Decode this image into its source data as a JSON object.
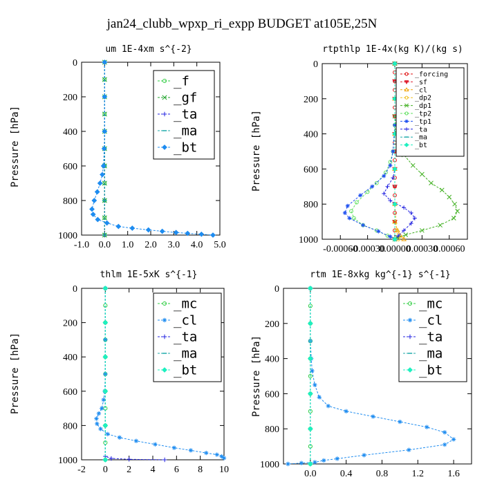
{
  "figure_title": "jan24_clubb_wpxp_ri_expp  BUDGET at105E,25N",
  "chart_data": [
    {
      "type": "line",
      "title": "um  1E-4xm s^{-2}",
      "ylabel": "Pressure [hPa]",
      "xlim": [
        -1.0,
        5.0
      ],
      "ylim": [
        1000,
        0
      ],
      "xticks": [
        -1.0,
        0.0,
        1.0,
        2.0,
        3.0,
        4.0,
        5.0
      ],
      "xtick_labels": [
        "-1.0",
        "0.0",
        "1.0",
        "2.0",
        "3.0",
        "4.0",
        "5.0"
      ],
      "yticks": [
        0,
        200,
        400,
        600,
        800,
        1000
      ],
      "ytick_labels": [
        "0",
        "200",
        "400",
        "600",
        "800",
        "1000"
      ],
      "legend": {
        "placement": "top-right",
        "size": "large"
      },
      "series": [
        {
          "name": "_f",
          "color": "#2ecc40",
          "marker": "circle",
          "x": [
            0,
            0,
            0,
            0,
            0,
            0,
            0,
            0,
            0,
            0,
            0
          ],
          "y": [
            0,
            100,
            200,
            300,
            400,
            500,
            600,
            700,
            800,
            900,
            1000
          ]
        },
        {
          "name": "_gf",
          "color": "#1ea32a",
          "marker": "cross",
          "x": [
            0,
            0,
            0,
            0,
            0,
            0,
            0,
            0,
            0,
            0,
            0
          ],
          "y": [
            0,
            100,
            200,
            300,
            400,
            500,
            600,
            700,
            800,
            900,
            1000
          ]
        },
        {
          "name": "_ta",
          "color": "#2020e0",
          "marker": "plus",
          "x": [
            0,
            0,
            0,
            0,
            0,
            0
          ],
          "y": [
            0,
            200,
            400,
            600,
            800,
            1000
          ]
        },
        {
          "name": "_ma",
          "color": "#1eaaaa",
          "marker": "dash",
          "x": [
            0,
            0,
            0,
            0,
            0,
            0
          ],
          "y": [
            0,
            200,
            400,
            600,
            800,
            1000
          ]
        },
        {
          "name": "_bt",
          "color": "#1e8cf0",
          "marker": "diamond",
          "x": [
            0,
            0,
            0,
            -0.02,
            -0.05,
            -0.1,
            -0.2,
            -0.32,
            -0.45,
            -0.55,
            -0.5,
            -0.3,
            0.1,
            0.6,
            1.2,
            1.9,
            2.5,
            3.1,
            3.6,
            4.2,
            4.7
          ],
          "y": [
            0,
            200,
            400,
            500,
            600,
            650,
            700,
            750,
            800,
            850,
            880,
            910,
            930,
            950,
            960,
            970,
            978,
            985,
            990,
            995,
            1000
          ]
        }
      ]
    },
    {
      "type": "line",
      "title": "rtpthlp  1E-4x(kg K)/(kg s)",
      "ylabel": "Pressure [hPa]",
      "xlim": [
        -0.0008,
        0.0008
      ],
      "ylim": [
        1000,
        0
      ],
      "xticks": [
        -0.0006,
        -0.0003,
        0.0,
        0.0003,
        0.0006
      ],
      "xtick_labels": [
        "-0.00060",
        "-0.00030",
        "0.00000",
        "0.00030",
        "0.00060"
      ],
      "yticks": [
        0,
        200,
        400,
        600,
        800,
        1000
      ],
      "ytick_labels": [
        "0",
        "200",
        "400",
        "600",
        "800",
        "1000"
      ],
      "legend": {
        "placement": "top-right",
        "size": "small"
      },
      "series": [
        {
          "name": "_forcing",
          "color": "#e01010",
          "marker": "circle",
          "x": [
            0,
            0,
            0,
            0,
            0,
            0,
            0,
            0,
            0,
            0,
            0,
            0,
            0,
            0,
            0,
            0,
            0,
            0,
            0,
            0,
            0
          ],
          "y": [
            0,
            50,
            100,
            150,
            200,
            250,
            300,
            350,
            400,
            450,
            500,
            550,
            600,
            650,
            700,
            750,
            800,
            850,
            900,
            950,
            1000
          ]
        },
        {
          "name": "_sf",
          "color": "#e02030",
          "marker": "triangle-down",
          "x": [
            0,
            0,
            0,
            0,
            0,
            0,
            0,
            0,
            0,
            0,
            0
          ],
          "y": [
            0,
            100,
            200,
            300,
            400,
            500,
            600,
            700,
            800,
            900,
            1000
          ]
        },
        {
          "name": "_cl",
          "color": "#f0a000",
          "marker": "triangle-up",
          "x": [
            0,
            0,
            0,
            0,
            0,
            0,
            3e-05,
            6e-05,
            0.0001
          ],
          "y": [
            0,
            200,
            400,
            600,
            800,
            900,
            950,
            980,
            1000
          ]
        },
        {
          "name": "_dp2",
          "color": "#f0c020",
          "marker": "circle",
          "x": [
            0,
            0,
            0,
            0,
            0,
            2e-05,
            4e-05
          ],
          "y": [
            0,
            200,
            400,
            600,
            800,
            950,
            1000
          ]
        },
        {
          "name": "_dp1",
          "color": "#40b020",
          "marker": "cross",
          "x": [
            0,
            0,
            2e-05,
            5e-05,
            0.0001,
            0.0002,
            0.0003,
            0.0004,
            0.00052,
            0.0006,
            0.00066,
            0.00069,
            0.00065,
            0.0005,
            0.0003,
            0.00012,
            3e-05,
            0
          ],
          "y": [
            0,
            300,
            380,
            450,
            520,
            580,
            630,
            680,
            720,
            760,
            800,
            840,
            880,
            920,
            950,
            975,
            990,
            1000
          ]
        },
        {
          "name": "_tp2",
          "color": "#60e060",
          "marker": "circle",
          "x": [
            0,
            0,
            -2e-05,
            -5e-05,
            -0.0001,
            -0.0002,
            -0.0003,
            -0.00042,
            -0.00048,
            -0.00045,
            -0.00035,
            -0.0002,
            -8e-05,
            0
          ],
          "y": [
            0,
            350,
            500,
            560,
            620,
            680,
            730,
            790,
            840,
            880,
            920,
            950,
            980,
            1000
          ]
        },
        {
          "name": "_tp1",
          "color": "#1e50f0",
          "marker": "star",
          "x": [
            0,
            0,
            -2e-05,
            -5e-05,
            -0.00012,
            -0.00025,
            -0.00038,
            -0.00052,
            -0.00055,
            -0.0005,
            -0.00035,
            -0.00018,
            -5e-05,
            0
          ],
          "y": [
            0,
            350,
            500,
            580,
            640,
            700,
            750,
            810,
            850,
            880,
            920,
            955,
            985,
            1000
          ]
        },
        {
          "name": "_ta",
          "color": "#2020e0",
          "marker": "plus",
          "x": [
            0,
            0,
            0,
            -2e-05,
            -8e-05,
            -0.00012,
            -5e-05,
            0.0001,
            0.00018,
            0.00022,
            0.00018,
            0.0001,
            4e-05,
            0
          ],
          "y": [
            0,
            400,
            600,
            650,
            700,
            740,
            780,
            820,
            850,
            880,
            910,
            950,
            980,
            1000
          ]
        },
        {
          "name": "_ma",
          "color": "#1eaaaa",
          "marker": "dash",
          "x": [
            0,
            0,
            0,
            0,
            0,
            0
          ],
          "y": [
            0,
            200,
            400,
            600,
            800,
            1000
          ]
        },
        {
          "name": "_bt",
          "color": "#1ef0c0",
          "marker": "diamond",
          "x": [
            0,
            0,
            0,
            0,
            0,
            0
          ],
          "y": [
            0,
            200,
            400,
            600,
            800,
            1000
          ]
        }
      ]
    },
    {
      "type": "line",
      "title": "thlm  1E-5xK s^{-1}",
      "ylabel": "Pressure [hPa]",
      "xlim": [
        -2,
        10
      ],
      "ylim": [
        1000,
        0
      ],
      "xticks": [
        -2,
        0,
        2,
        4,
        6,
        8,
        10
      ],
      "xtick_labels": [
        "-2",
        "0",
        "2",
        "4",
        "6",
        "8",
        "10"
      ],
      "yticks": [
        0,
        200,
        400,
        600,
        800,
        1000
      ],
      "ytick_labels": [
        "0",
        "200",
        "400",
        "600",
        "800",
        "1000"
      ],
      "legend": {
        "placement": "top-right",
        "size": "large"
      },
      "series": [
        {
          "name": "_mc",
          "color": "#2ecc40",
          "marker": "circle",
          "x": [
            0,
            0,
            0,
            0,
            0,
            0,
            0,
            0,
            0,
            0,
            0
          ],
          "y": [
            0,
            100,
            200,
            300,
            400,
            500,
            600,
            700,
            800,
            900,
            1000
          ]
        },
        {
          "name": "_cl",
          "color": "#1e8cf0",
          "marker": "star",
          "x": [
            0,
            0,
            0,
            -0.05,
            -0.15,
            -0.3,
            -0.55,
            -0.75,
            -0.7,
            -0.4,
            0.2,
            1.2,
            2.6,
            4.2,
            5.8,
            7.2,
            8.5,
            9.4,
            9.8,
            10
          ],
          "y": [
            0,
            300,
            500,
            600,
            650,
            700,
            730,
            760,
            790,
            820,
            850,
            870,
            890,
            910,
            930,
            945,
            960,
            970,
            980,
            990
          ]
        },
        {
          "name": "_ta",
          "color": "#2020e0",
          "marker": "plus",
          "x": [
            0,
            0,
            0,
            0,
            0.5,
            2.0,
            5.0
          ],
          "y": [
            0,
            400,
            800,
            980,
            992,
            997,
            1000
          ]
        },
        {
          "name": "_ma",
          "color": "#1eaaaa",
          "marker": "dash",
          "x": [
            0,
            0,
            0,
            0,
            0,
            0
          ],
          "y": [
            0,
            200,
            400,
            600,
            800,
            1000
          ]
        },
        {
          "name": "_bt",
          "color": "#1ef0c0",
          "marker": "diamond",
          "x": [
            0,
            0,
            0,
            0,
            0,
            0
          ],
          "y": [
            0,
            200,
            400,
            600,
            800,
            1000
          ]
        }
      ]
    },
    {
      "type": "line",
      "title": "rtm  1E-8xkg kg^{-1} s^{-1}",
      "ylabel": "Pressure [hPa]",
      "xlim": [
        -0.3,
        1.8
      ],
      "ylim": [
        1000,
        0
      ],
      "xticks": [
        0.0,
        0.4,
        0.8,
        1.2,
        1.6
      ],
      "xtick_labels": [
        "0.0",
        "0.4",
        "0.8",
        "1.2",
        "1.6"
      ],
      "yticks": [
        0,
        200,
        400,
        600,
        800,
        1000
      ],
      "ytick_labels": [
        "0",
        "200",
        "400",
        "600",
        "800",
        "1000"
      ],
      "legend": {
        "placement": "top-right",
        "size": "large"
      },
      "series": [
        {
          "name": "_mc",
          "color": "#2ecc40",
          "marker": "circle",
          "x": [
            0,
            0,
            0,
            0,
            0,
            0,
            0,
            0,
            0,
            0,
            0
          ],
          "y": [
            0,
            100,
            200,
            300,
            400,
            500,
            600,
            700,
            800,
            900,
            1000
          ]
        },
        {
          "name": "_cl",
          "color": "#1e8cf0",
          "marker": "star",
          "x": [
            0,
            0,
            0.01,
            0.02,
            0.05,
            0.1,
            0.2,
            0.4,
            0.7,
            1.0,
            1.3,
            1.5,
            1.6,
            1.5,
            1.1,
            0.6,
            0.3,
            0.15,
            0.05,
            -0.1,
            -0.25
          ],
          "y": [
            0,
            300,
            400,
            470,
            550,
            620,
            670,
            700,
            730,
            760,
            790,
            820,
            860,
            890,
            920,
            950,
            970,
            980,
            990,
            995,
            1000
          ]
        },
        {
          "name": "_ta",
          "color": "#2020e0",
          "marker": "plus",
          "x": [
            0,
            0,
            0,
            0,
            0,
            0
          ],
          "y": [
            0,
            200,
            400,
            600,
            800,
            1000
          ]
        },
        {
          "name": "_ma",
          "color": "#1eaaaa",
          "marker": "dash",
          "x": [
            0,
            0,
            0,
            0,
            0,
            0
          ],
          "y": [
            0,
            200,
            400,
            600,
            800,
            1000
          ]
        },
        {
          "name": "_bt",
          "color": "#1ef0c0",
          "marker": "diamond",
          "x": [
            0,
            0,
            0,
            0,
            0,
            0
          ],
          "y": [
            0,
            200,
            400,
            600,
            800,
            1000
          ]
        }
      ]
    }
  ]
}
